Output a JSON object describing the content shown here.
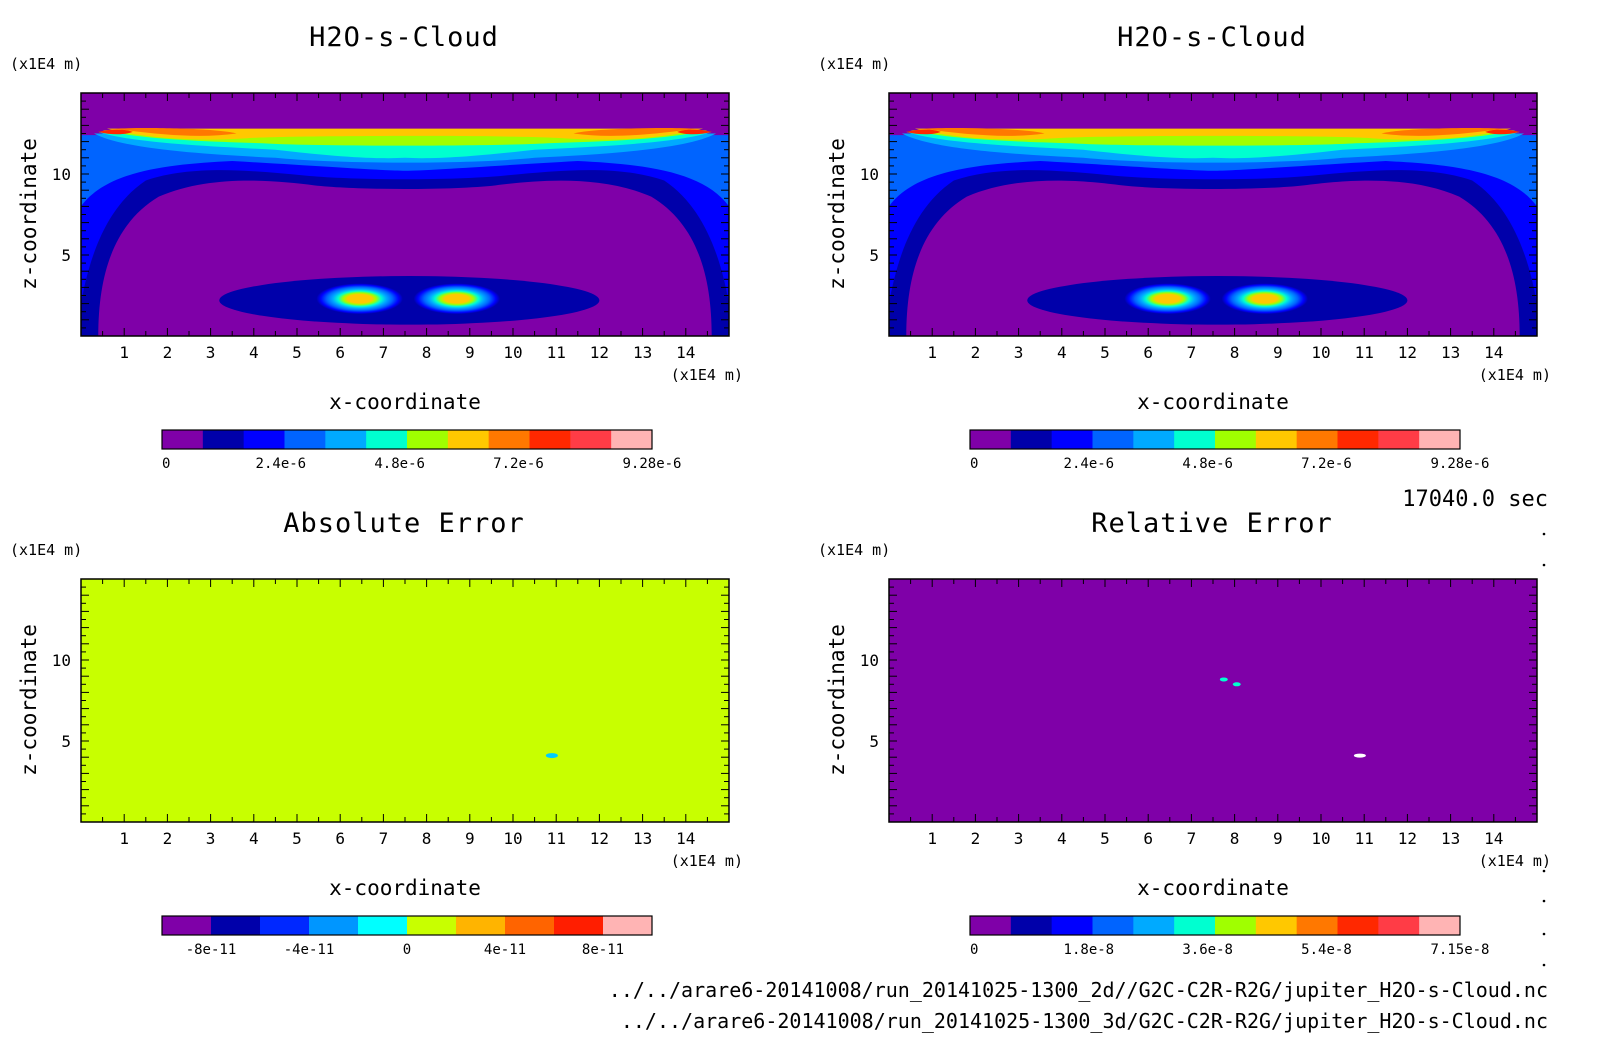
{
  "chart_data": [
    {
      "id": "top-left",
      "type": "heatmap",
      "title": "H2O-s-Cloud",
      "field": "cloud",
      "xlabel": "x-coordinate",
      "ylabel": "z-coordinate",
      "x_unit": "(x1E4 m)",
      "z_unit": "(x1E4 m)",
      "xlim": [
        0,
        15
      ],
      "zlim": [
        0,
        15
      ],
      "x_ticks": [
        "1",
        "2",
        "3",
        "4",
        "5",
        "6",
        "7",
        "8",
        "9",
        "10",
        "11",
        "12",
        "13",
        "14"
      ],
      "z_ticks": [
        "5",
        "10"
      ],
      "colorbar": {
        "ticks": [
          "0",
          "2.4e-6",
          "4.8e-6",
          "7.2e-6",
          "9.28e-6"
        ],
        "colors": [
          "#7f00a8",
          "#0000aa",
          "#0000ff",
          "#0064ff",
          "#00aaff",
          "#00ffd0",
          "#a0ff00",
          "#ffc800",
          "#ff7800",
          "#ff2800",
          "#ff3c46",
          "#ffb4b4"
        ]
      }
    },
    {
      "id": "top-right",
      "type": "heatmap",
      "title": "H2O-s-Cloud",
      "field": "cloud",
      "xlabel": "x-coordinate",
      "ylabel": "z-coordinate",
      "x_unit": "(x1E4 m)",
      "z_unit": "(x1E4 m)",
      "xlim": [
        0,
        15
      ],
      "zlim": [
        0,
        15
      ],
      "x_ticks": [
        "1",
        "2",
        "3",
        "4",
        "5",
        "6",
        "7",
        "8",
        "9",
        "10",
        "11",
        "12",
        "13",
        "14"
      ],
      "z_ticks": [
        "5",
        "10"
      ],
      "colorbar": {
        "ticks": [
          "0",
          "2.4e-6",
          "4.8e-6",
          "7.2e-6",
          "9.28e-6"
        ],
        "colors": [
          "#7f00a8",
          "#0000aa",
          "#0000ff",
          "#0064ff",
          "#00aaff",
          "#00ffd0",
          "#a0ff00",
          "#ffc800",
          "#ff7800",
          "#ff2800",
          "#ff3c46",
          "#ffb4b4"
        ]
      }
    },
    {
      "id": "bottom-left",
      "type": "heatmap",
      "title": "Absolute Error",
      "field": "abs",
      "xlabel": "x-coordinate",
      "ylabel": "z-coordinate",
      "x_unit": "(x1E4 m)",
      "z_unit": "(x1E4 m)",
      "xlim": [
        0,
        15
      ],
      "zlim": [
        0,
        15
      ],
      "x_ticks": [
        "1",
        "2",
        "3",
        "4",
        "5",
        "6",
        "7",
        "8",
        "9",
        "10",
        "11",
        "12",
        "13",
        "14"
      ],
      "z_ticks": [
        "5",
        "10"
      ],
      "features": [
        {
          "x": 10.9,
          "z": 4.1
        }
      ],
      "colorbar": {
        "ticks": [
          "-8e-11",
          "-4e-11",
          "0",
          "4e-11",
          "8e-11"
        ],
        "colors": [
          "#7f00a8",
          "#0000aa",
          "#0028ff",
          "#0096ff",
          "#00ffff",
          "#c8ff00",
          "#ffb400",
          "#ff6400",
          "#ff1e00",
          "#ffb4b4"
        ]
      }
    },
    {
      "id": "bottom-right",
      "type": "heatmap",
      "title": "Relative Error",
      "field": "rel",
      "xlabel": "x-coordinate",
      "ylabel": "z-coordinate",
      "x_unit": "(x1E4 m)",
      "z_unit": "(x1E4 m)",
      "xlim": [
        0,
        15
      ],
      "zlim": [
        0,
        15
      ],
      "x_ticks": [
        "1",
        "2",
        "3",
        "4",
        "5",
        "6",
        "7",
        "8",
        "9",
        "10",
        "11",
        "12",
        "13",
        "14"
      ],
      "z_ticks": [
        "5",
        "10"
      ],
      "features": [
        {
          "x": 7.75,
          "z": 8.8
        },
        {
          "x": 8.05,
          "z": 8.5
        },
        {
          "x": 10.9,
          "z": 4.1
        }
      ],
      "colorbar": {
        "ticks": [
          "0",
          "1.8e-8",
          "3.6e-8",
          "5.4e-8",
          "7.15e-8"
        ],
        "colors": [
          "#7f00a8",
          "#0000aa",
          "#0000ff",
          "#0064ff",
          "#00aaff",
          "#00ffd0",
          "#a0ff00",
          "#ffc800",
          "#ff7800",
          "#ff2800",
          "#ff3c46",
          "#ffb4b4"
        ]
      }
    }
  ],
  "time_label": "17040.0 sec",
  "footer": {
    "line1": "../../arare6-20141008/run_20141025-1300_2d//G2C-C2R-R2G/jupiter_H2O-s-Cloud.nc",
    "line2": "../../arare6-20141008/run_20141025-1300_3d/G2C-C2R-R2G/jupiter_H2O-s-Cloud.nc"
  }
}
